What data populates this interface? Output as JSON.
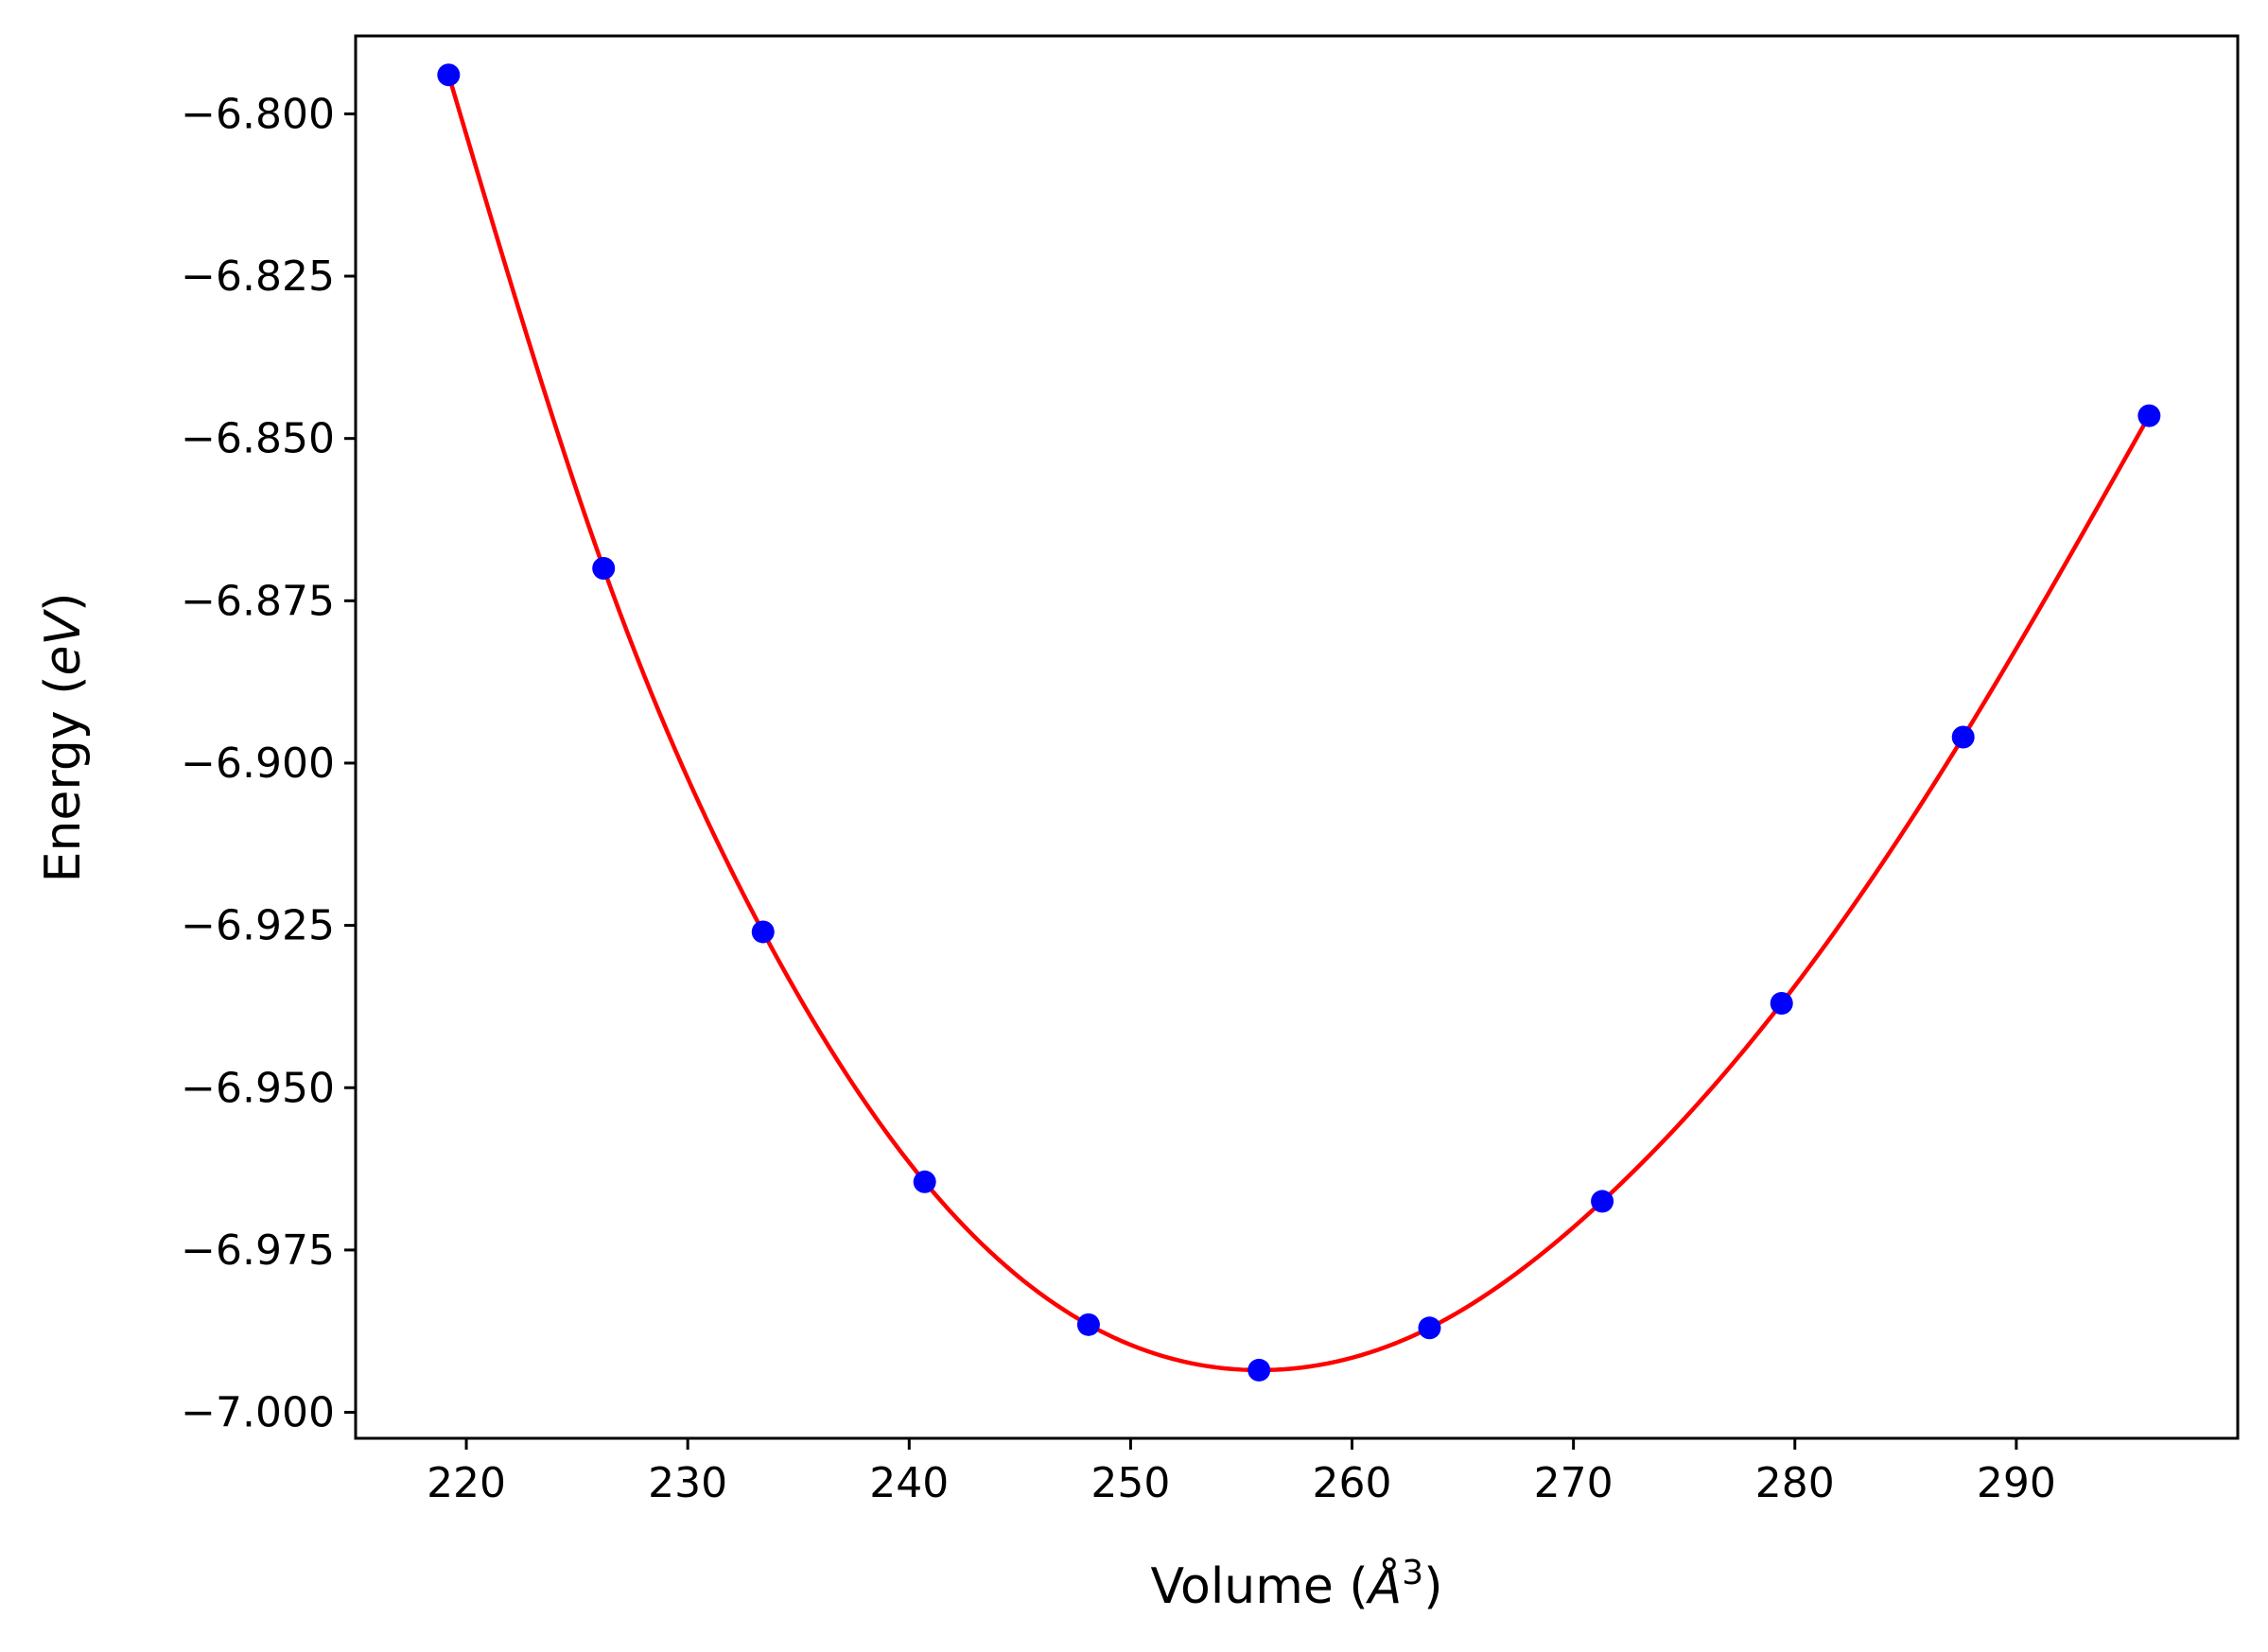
{
  "chart_data": {
    "type": "line",
    "title": "",
    "xlabel": "Volume (Å³)",
    "ylabel": "Energy (eV)",
    "xlim": [
      215,
      300
    ],
    "ylim": [
      -7.004,
      -6.788
    ],
    "grid": false,
    "xticks": [
      220,
      230,
      240,
      250,
      260,
      270,
      280,
      290
    ],
    "yticks": [
      -6.8,
      -6.825,
      -6.85,
      -6.875,
      -6.9,
      -6.925,
      -6.95,
      -6.975,
      -7.0
    ],
    "xtick_labels": [
      "220",
      "230",
      "240",
      "250",
      "260",
      "270",
      "280",
      "290"
    ],
    "ytick_labels": [
      "−6.800",
      "−6.825",
      "−6.850",
      "−6.875",
      "−6.900",
      "−6.925",
      "−6.950",
      "−6.975",
      "−7.000"
    ],
    "series": [
      {
        "kind": "scatter",
        "color": "#0000ff",
        "x": [
          219.2,
          226.2,
          233.4,
          240.7,
          248.1,
          255.8,
          263.5,
          271.3,
          279.4,
          287.6,
          296.0
        ],
        "y": [
          -6.794,
          -6.87,
          -6.926,
          -6.9645,
          -6.9865,
          -6.9935,
          -6.987,
          -6.9675,
          -6.937,
          -6.896,
          -6.8465
        ]
      },
      {
        "kind": "fit-line",
        "color": "#ff0000",
        "x": [
          219.2,
          226.2,
          233.4,
          240.7,
          248.1,
          255.8,
          263.5,
          271.3,
          279.4,
          287.6,
          296.0
        ],
        "y": [
          -6.794,
          -6.87,
          -6.926,
          -6.9645,
          -6.9865,
          -6.9935,
          -6.987,
          -6.9675,
          -6.937,
          -6.896,
          -6.8465
        ]
      }
    ]
  }
}
